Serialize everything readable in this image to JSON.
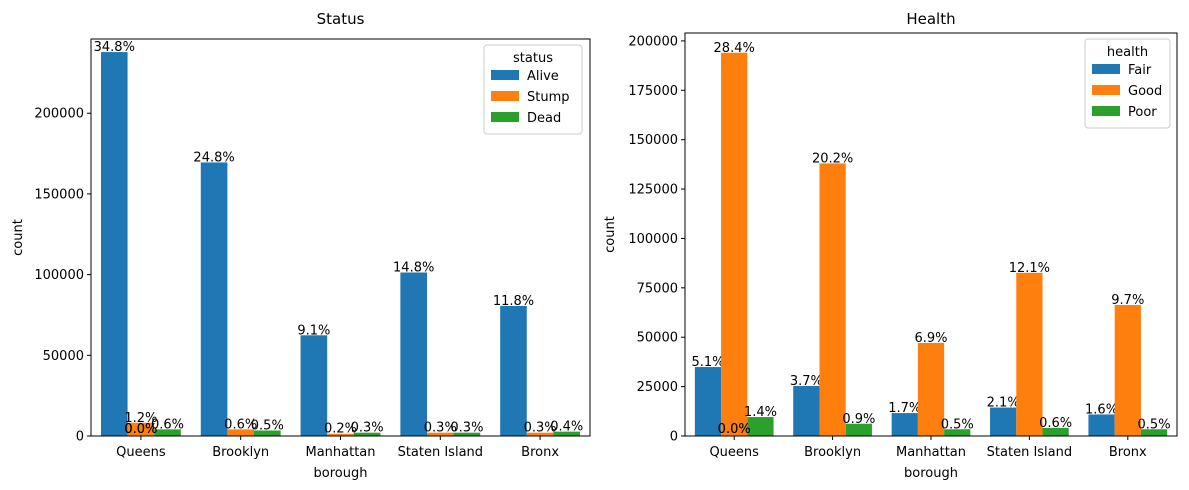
{
  "chart_data": [
    {
      "type": "bar",
      "title": "Status",
      "xlabel": "borough",
      "ylabel": "count",
      "categories": [
        "Queens",
        "Brooklyn",
        "Manhattan",
        "Staten Island",
        "Bronx"
      ],
      "ylim": [
        0,
        246000
      ],
      "yticks": [
        0,
        50000,
        100000,
        150000,
        200000
      ],
      "legend_title": "status",
      "legend_position": "top-right",
      "grid": false,
      "series": [
        {
          "name": "Alive",
          "color": "#1f77b4",
          "values": [
            237900,
            169500,
            62400,
            101300,
            80600
          ],
          "labels": [
            "34.8%",
            "24.8%",
            "9.1%",
            "14.8%",
            "11.8%"
          ]
        },
        {
          "name": "Stump",
          "color": "#ff7f0e",
          "values": [
            8200,
            4100,
            1400,
            2050,
            2050
          ],
          "labels": [
            "1.2%",
            "0.6%",
            "0.2%",
            "0.3%",
            "0.3%"
          ]
        },
        {
          "name": "Dead",
          "color": "#2ca02c",
          "values": [
            4100,
            3400,
            2050,
            2050,
            2700
          ],
          "labels": [
            "0.6%",
            "0.5%",
            "0.3%",
            "0.3%",
            "0.4%"
          ]
        }
      ],
      "extra_labels": [
        {
          "category_index": 0,
          "text": "0.0%"
        },
        {
          "category_index": 0,
          "text": "0.0%"
        }
      ]
    },
    {
      "type": "bar",
      "title": "Health",
      "xlabel": "borough",
      "ylabel": "count",
      "categories": [
        "Queens",
        "Brooklyn",
        "Manhattan",
        "Staten Island",
        "Bronx"
      ],
      "ylim": [
        0,
        204000
      ],
      "yticks": [
        0,
        25000,
        50000,
        75000,
        100000,
        125000,
        150000,
        175000,
        200000
      ],
      "legend_title": "health",
      "legend_position": "top-right",
      "grid": false,
      "series": [
        {
          "name": "Fair",
          "color": "#1f77b4",
          "values": [
            34900,
            25300,
            11600,
            14400,
            10900
          ],
          "labels": [
            "5.1%",
            "3.7%",
            "1.7%",
            "2.1%",
            "1.6%"
          ]
        },
        {
          "name": "Good",
          "color": "#ff7f0e",
          "values": [
            194000,
            138000,
            47100,
            82600,
            66300
          ],
          "labels": [
            "28.4%",
            "20.2%",
            "6.9%",
            "12.1%",
            "9.7%"
          ]
        },
        {
          "name": "Poor",
          "color": "#2ca02c",
          "values": [
            9600,
            6200,
            3400,
            4100,
            3400
          ],
          "labels": [
            "1.4%",
            "0.9%",
            "0.5%",
            "0.6%",
            "0.5%"
          ]
        }
      ],
      "extra_labels": [
        {
          "category_index": 0,
          "text": "0.0%"
        },
        {
          "category_index": 0,
          "text": "0.0%"
        }
      ]
    }
  ]
}
